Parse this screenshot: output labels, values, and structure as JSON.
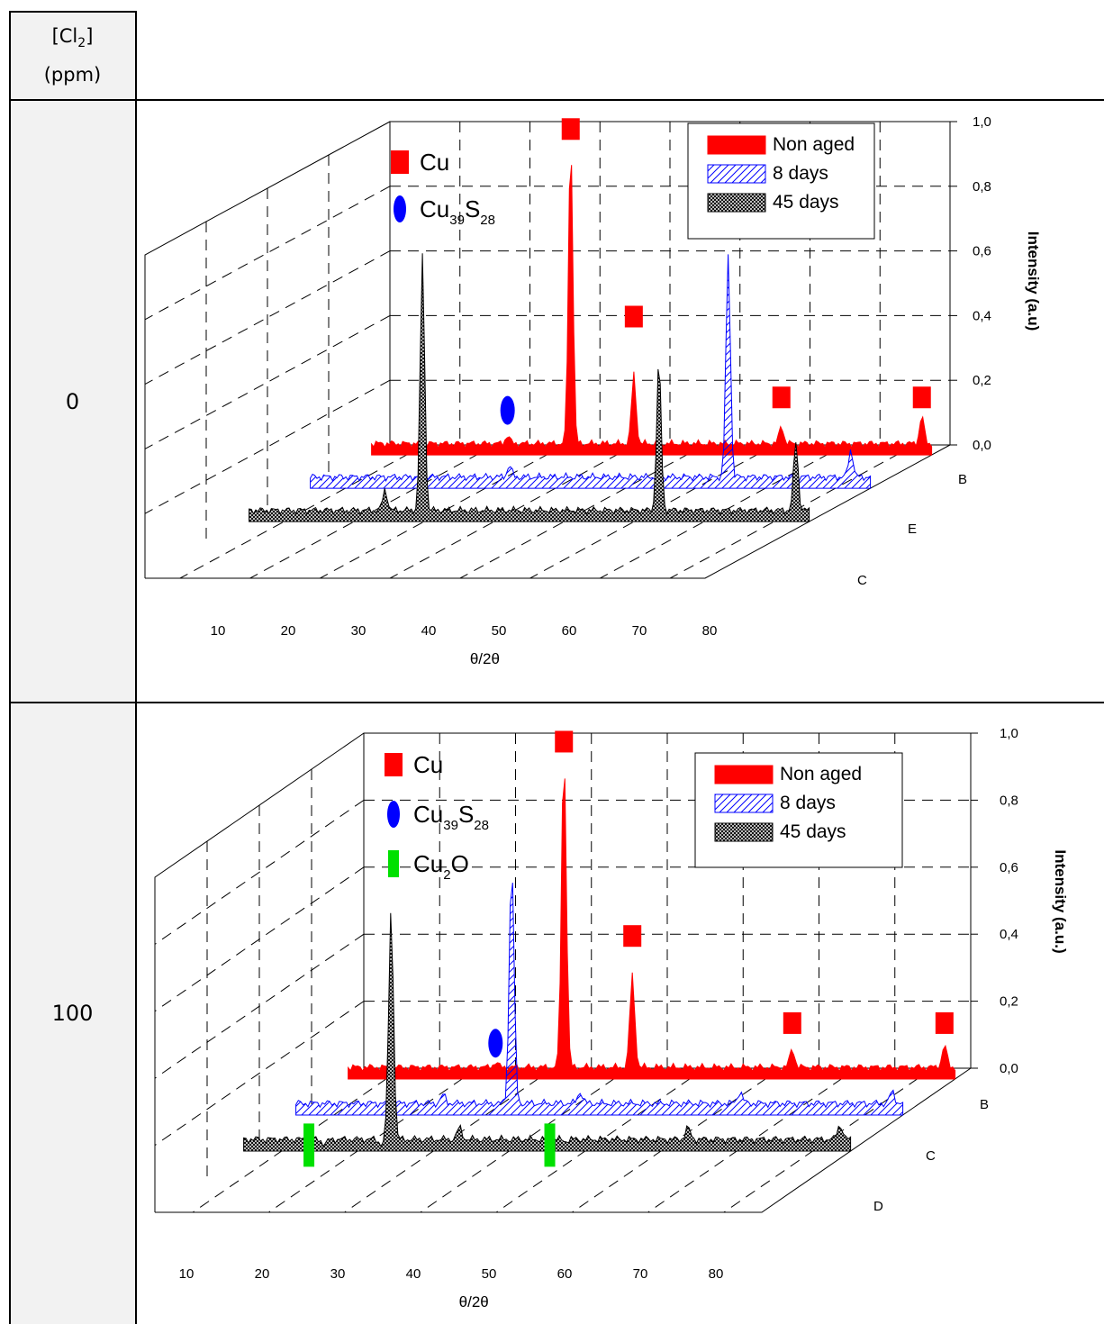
{
  "table": {
    "header": {
      "species_pre": "[Cl",
      "species_sub": "2",
      "species_post": "]",
      "unit": "(ppm)"
    },
    "rows": [
      {
        "concentration": "0"
      },
      {
        "concentration": "100"
      }
    ]
  },
  "colors": {
    "non_aged": "#ff0000",
    "eight_days": "#0000ff",
    "forty_five_days": "#000000",
    "cu": "#ff0000",
    "cu39s28": "#0000ff",
    "cu2o": "#00e000"
  },
  "chart_data": [
    {
      "type": "line",
      "projection": "3d-waterfall",
      "xlabel": "θ/2θ",
      "ylabel": "Intensity (a.u)",
      "x_ticks": [
        "10",
        "20",
        "30",
        "40",
        "50",
        "60",
        "70",
        "80"
      ],
      "y_ticks": [
        "0,0",
        "0,2",
        "0,4",
        "0,6",
        "0,8",
        "1,0"
      ],
      "ylim": [
        0,
        1.0
      ],
      "grid": true,
      "legend": "top-right",
      "depth_labels": [
        "B",
        "E",
        "C"
      ],
      "series": [
        {
          "name": "Non aged",
          "style": "solid",
          "depth_label": "B",
          "peaks": [
            {
              "x": 43.3,
              "y": 0.06
            },
            {
              "x": 50.4,
              "y": 0.98
            },
            {
              "x": 57.5,
              "y": 0.25
            },
            {
              "x": 74.1,
              "y": 0.09
            },
            {
              "x": 89.9,
              "y": 0.12
            }
          ]
        },
        {
          "name": "8 days",
          "style": "hatched",
          "depth_label": "E",
          "peaks": [
            {
              "x": 50.4,
              "y": 0.07
            },
            {
              "x": 75.0,
              "y": 0.72
            },
            {
              "x": 88.8,
              "y": 0.12
            }
          ]
        },
        {
          "name": "45 days",
          "style": "crosshatched",
          "depth_label": "C",
          "peaks": [
            {
              "x": 43.3,
              "y": 0.1
            },
            {
              "x": 47.5,
              "y": 0.82
            },
            {
              "x": 74.1,
              "y": 0.5
            },
            {
              "x": 89.5,
              "y": 0.25
            }
          ]
        }
      ],
      "markers_legend": [
        {
          "name_pre": "Cu",
          "name_sub1": "",
          "name_mid": "",
          "name_sub2": "",
          "shape": "square",
          "color": "#ff0000"
        },
        {
          "name_pre": "Cu",
          "name_sub1": "39",
          "name_mid": "S",
          "name_sub2": "28",
          "shape": "ellipse",
          "color": "#0000ff"
        }
      ],
      "peak_markers": [
        {
          "shape": "square",
          "x": 50.4,
          "y": 0.98
        },
        {
          "shape": "square",
          "x": 57.5,
          "y": 0.4
        },
        {
          "shape": "square",
          "x": 74.1,
          "y": 0.15
        },
        {
          "shape": "square",
          "x": 89.9,
          "y": 0.15
        },
        {
          "shape": "ellipse",
          "x": 43.3,
          "y": 0.11
        }
      ]
    },
    {
      "type": "line",
      "projection": "3d-waterfall",
      "xlabel": "θ/2θ",
      "ylabel": "Intensity (a.u.)",
      "x_ticks": [
        "10",
        "20",
        "30",
        "40",
        "50",
        "60",
        "70",
        "80"
      ],
      "y_ticks": [
        "0,0",
        "0,2",
        "0,4",
        "0,6",
        "0,8",
        "1,0"
      ],
      "ylim": [
        0,
        1.0
      ],
      "grid": true,
      "legend": "top-right",
      "depth_labels": [
        "B",
        "C",
        "D"
      ],
      "series": [
        {
          "name": "Non aged",
          "style": "solid",
          "depth_label": "B",
          "peaks": [
            {
              "x": 43.3,
              "y": 0.05
            },
            {
              "x": 50.4,
              "y": 0.98
            },
            {
              "x": 57.5,
              "y": 0.31
            },
            {
              "x": 74.1,
              "y": 0.09
            },
            {
              "x": 89.9,
              "y": 0.1
            }
          ]
        },
        {
          "name": "8 days",
          "style": "hatched",
          "depth_label": "C",
          "peaks": [
            {
              "x": 43.3,
              "y": 0.06
            },
            {
              "x": 50.4,
              "y": 0.75
            },
            {
              "x": 57.5,
              "y": 0.07
            },
            {
              "x": 74.1,
              "y": 0.07
            },
            {
              "x": 89.9,
              "y": 0.07
            }
          ]
        },
        {
          "name": "45 days",
          "style": "crosshatched",
          "depth_label": "D",
          "peaks": [
            {
              "x": 36.4,
              "y": 0.02
            },
            {
              "x": 42.3,
              "y": 0.02
            },
            {
              "x": 43.3,
              "y": 0.72
            },
            {
              "x": 50.4,
              "y": 0.07
            },
            {
              "x": 61.4,
              "y": 0.03
            },
            {
              "x": 74.1,
              "y": 0.07
            },
            {
              "x": 89.9,
              "y": 0.08
            }
          ]
        }
      ],
      "markers_legend": [
        {
          "name_pre": "Cu",
          "name_sub1": "",
          "name_mid": "",
          "name_sub2": "",
          "shape": "square",
          "color": "#ff0000"
        },
        {
          "name_pre": "Cu",
          "name_sub1": "39",
          "name_mid": "S",
          "name_sub2": "28",
          "shape": "ellipse",
          "color": "#0000ff"
        },
        {
          "name_pre": "Cu",
          "name_sub1": "2",
          "name_mid": "O",
          "name_sub2": "",
          "shape": "bar",
          "color": "#00e000"
        }
      ],
      "peak_markers": [
        {
          "shape": "square",
          "x": 50.4,
          "y": 0.98
        },
        {
          "shape": "square",
          "x": 57.5,
          "y": 0.4
        },
        {
          "shape": "square",
          "x": 74.1,
          "y": 0.14
        },
        {
          "shape": "square",
          "x": 89.9,
          "y": 0.14
        },
        {
          "shape": "ellipse",
          "x": 43.3,
          "y": 0.08
        },
        {
          "shape": "bar",
          "x": 36.4,
          "y": 0.0
        },
        {
          "shape": "bar",
          "x": 61.4,
          "y": 0.0
        }
      ]
    }
  ]
}
